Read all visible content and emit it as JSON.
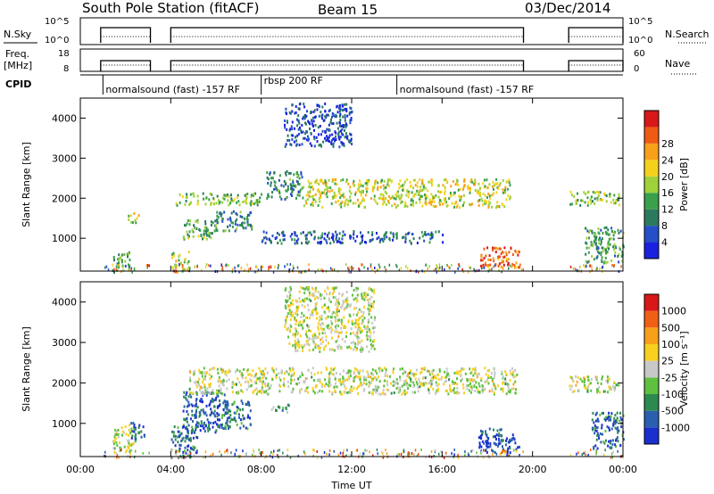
{
  "header": {
    "station": "South Pole Station (fitACF)",
    "beam": "Beam 15",
    "date": "03/Dec/2014"
  },
  "strip_panels": {
    "nsky_label": "N.Sky",
    "noise_ticks": [
      "10^5",
      "10^0"
    ],
    "nsearch_label": "N.Search",
    "freq_label_1": "Freq.",
    "freq_label_2": "[MHz]",
    "freq_ticks": [
      "18",
      "8"
    ],
    "nave_ticks": [
      "60",
      "0"
    ],
    "nave_label": "Nave",
    "cpid_label": "CPID",
    "cpid_segments": [
      {
        "label": "normalsound (fast) -157 RF",
        "start_h": 1.0,
        "end_h": 8.0
      },
      {
        "label": "rbsp 200 RF",
        "start_h": 8.0,
        "end_h": 14.0
      },
      {
        "label": "normalsound (fast) -157 RF",
        "start_h": 14.0,
        "end_h": 24.0
      }
    ],
    "data_gaps_h": [
      [
        0.0,
        0.9
      ],
      [
        3.1,
        4.0
      ],
      [
        19.6,
        21.6
      ]
    ]
  },
  "chart_data": [
    {
      "type": "heatmap",
      "name": "power",
      "ylabel": "Slant Range [km]",
      "xlim": [
        0,
        24
      ],
      "ylim": [
        180,
        4500
      ],
      "yticks": [
        1000,
        2000,
        3000,
        4000
      ],
      "colorbar": {
        "label": "Power [dB]",
        "ticks": [
          "4",
          "8",
          "12",
          "16",
          "20",
          "24",
          "28"
        ],
        "colors": [
          "#1a20e0",
          "#244fc8",
          "#2c7a5e",
          "#3aa04a",
          "#9fd23a",
          "#f5d21a",
          "#f8a01a",
          "#ef5a14",
          "#d81818"
        ]
      },
      "echo_regions": [
        {
          "x": [
            1.4,
            2.2
          ],
          "y": [
            180,
            700
          ],
          "level": 0.35
        },
        {
          "x": [
            2.1,
            2.6
          ],
          "y": [
            1400,
            1650
          ],
          "level": 0.55
        },
        {
          "x": [
            4.0,
            4.8
          ],
          "y": [
            180,
            700
          ],
          "level": 0.55
        },
        {
          "x": [
            4.2,
            8.0
          ],
          "y": [
            1850,
            2150
          ],
          "level": 0.45
        },
        {
          "x": [
            4.5,
            6.0
          ],
          "y": [
            1000,
            1500
          ],
          "level": 0.4
        },
        {
          "x": [
            6.0,
            7.6
          ],
          "y": [
            1200,
            1700
          ],
          "level": 0.3
        },
        {
          "x": [
            8.2,
            9.8
          ],
          "y": [
            2000,
            2700
          ],
          "level": 0.3
        },
        {
          "x": [
            9.0,
            12.0
          ],
          "y": [
            3300,
            4400
          ],
          "level": 0.15
        },
        {
          "x": [
            9.8,
            19.0
          ],
          "y": [
            1800,
            2500
          ],
          "level": 0.55
        },
        {
          "x": [
            8.0,
            16.0
          ],
          "y": [
            900,
            1200
          ],
          "level": 0.2
        },
        {
          "x": [
            17.6,
            19.4
          ],
          "y": [
            300,
            800
          ],
          "level": 0.8
        },
        {
          "x": [
            21.6,
            23.8
          ],
          "y": [
            1850,
            2200
          ],
          "level": 0.45
        },
        {
          "x": [
            22.3,
            24.0
          ],
          "y": [
            400,
            1300
          ],
          "level": 0.35
        }
      ]
    },
    {
      "type": "heatmap",
      "name": "velocity",
      "ylabel": "Slant Range [km]",
      "xlabel": "Time UT",
      "xlim": [
        0,
        24
      ],
      "ylim": [
        180,
        4500
      ],
      "xticks": [
        "00:00",
        "04:00",
        "08:00",
        "12:00",
        "16:00",
        "20:00",
        "00:00"
      ],
      "yticks": [
        1000,
        2000,
        3000,
        4000
      ],
      "colorbar": {
        "label": "Velocity [m s⁻¹]",
        "ticks": [
          "1000",
          "500",
          "100",
          "25",
          "-25",
          "-100",
          "-500",
          "-1000"
        ],
        "colors": [
          "#1a2fd0",
          "#2a5fb0",
          "#2c8a50",
          "#5fc040",
          "#c8c8c8",
          "#f8d020",
          "#f8a01a",
          "#f06014",
          "#d81818"
        ]
      },
      "echo_regions": [
        {
          "x": [
            1.4,
            2.4
          ],
          "y": [
            300,
            1000
          ],
          "level": 0.5
        },
        {
          "x": [
            2.2,
            2.8
          ],
          "y": [
            600,
            1100
          ],
          "level": 0.15
        },
        {
          "x": [
            4.0,
            5.2
          ],
          "y": [
            180,
            1000
          ],
          "level": 0.2
        },
        {
          "x": [
            4.5,
            6.5
          ],
          "y": [
            800,
            1800
          ],
          "level": 0.15
        },
        {
          "x": [
            6.2,
            7.5
          ],
          "y": [
            900,
            1600
          ],
          "level": 0.25
        },
        {
          "x": [
            4.8,
            19.3
          ],
          "y": [
            1750,
            2400
          ],
          "level": 0.5
        },
        {
          "x": [
            8.4,
            9.2
          ],
          "y": [
            1300,
            1500
          ],
          "level": 0.35
        },
        {
          "x": [
            9.0,
            13.0
          ],
          "y": [
            2800,
            4400
          ],
          "level": 0.5
        },
        {
          "x": [
            17.6,
            19.4
          ],
          "y": [
            300,
            900
          ],
          "level": 0.15
        },
        {
          "x": [
            21.6,
            23.8
          ],
          "y": [
            1800,
            2200
          ],
          "level": 0.5
        },
        {
          "x": [
            22.6,
            24.0
          ],
          "y": [
            400,
            1300
          ],
          "level": 0.2
        }
      ]
    }
  ]
}
